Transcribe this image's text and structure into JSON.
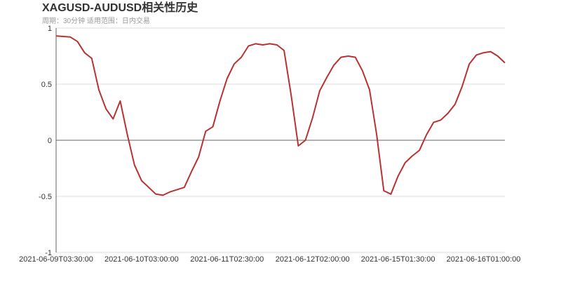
{
  "chart_data": {
    "type": "line",
    "title": "XAGUSD-AUDUSD相关性历史",
    "subtitle": "周期：30分钟 适用范围：日内交易",
    "categories": [
      "2021-06-09T03:30:00",
      null,
      null,
      null,
      null,
      null,
      null,
      null,
      null,
      null,
      null,
      null,
      "2021-06-10T03:00:00",
      null,
      null,
      null,
      null,
      null,
      null,
      null,
      null,
      null,
      null,
      null,
      "2021-06-11T02:30:00",
      null,
      null,
      null,
      null,
      null,
      null,
      null,
      null,
      null,
      null,
      null,
      "2021-06-12T02:00:00",
      null,
      null,
      null,
      null,
      null,
      null,
      null,
      null,
      null,
      null,
      null,
      "2021-06-15T01:30:00",
      null,
      null,
      null,
      null,
      null,
      null,
      null,
      null,
      null,
      null,
      null,
      "2021-06-16T01:00:00",
      null,
      null,
      null
    ],
    "series": [
      {
        "color": "#b83232",
        "values": [
          0.93,
          0.925,
          0.92,
          0.88,
          0.78,
          0.73,
          0.45,
          0.28,
          0.19,
          0.35,
          0.05,
          -0.22,
          -0.36,
          -0.42,
          -0.48,
          -0.49,
          -0.46,
          -0.44,
          -0.42,
          -0.28,
          -0.15,
          0.08,
          0.12,
          0.35,
          0.55,
          0.68,
          0.74,
          0.84,
          0.86,
          0.85,
          0.86,
          0.85,
          0.8,
          0.4,
          -0.05,
          0.0,
          0.2,
          0.44,
          0.56,
          0.67,
          0.74,
          0.75,
          0.74,
          0.62,
          0.45,
          0.05,
          -0.45,
          -0.48,
          -0.32,
          -0.2,
          -0.14,
          -0.09,
          0.05,
          0.16,
          0.18,
          0.24,
          0.32,
          0.48,
          0.68,
          0.76,
          0.78,
          0.79,
          0.75,
          0.69
        ]
      }
    ],
    "ylim": [
      -1,
      1
    ],
    "yticks": [
      -1,
      -0.5,
      0,
      0.5,
      1
    ],
    "grid": true
  }
}
